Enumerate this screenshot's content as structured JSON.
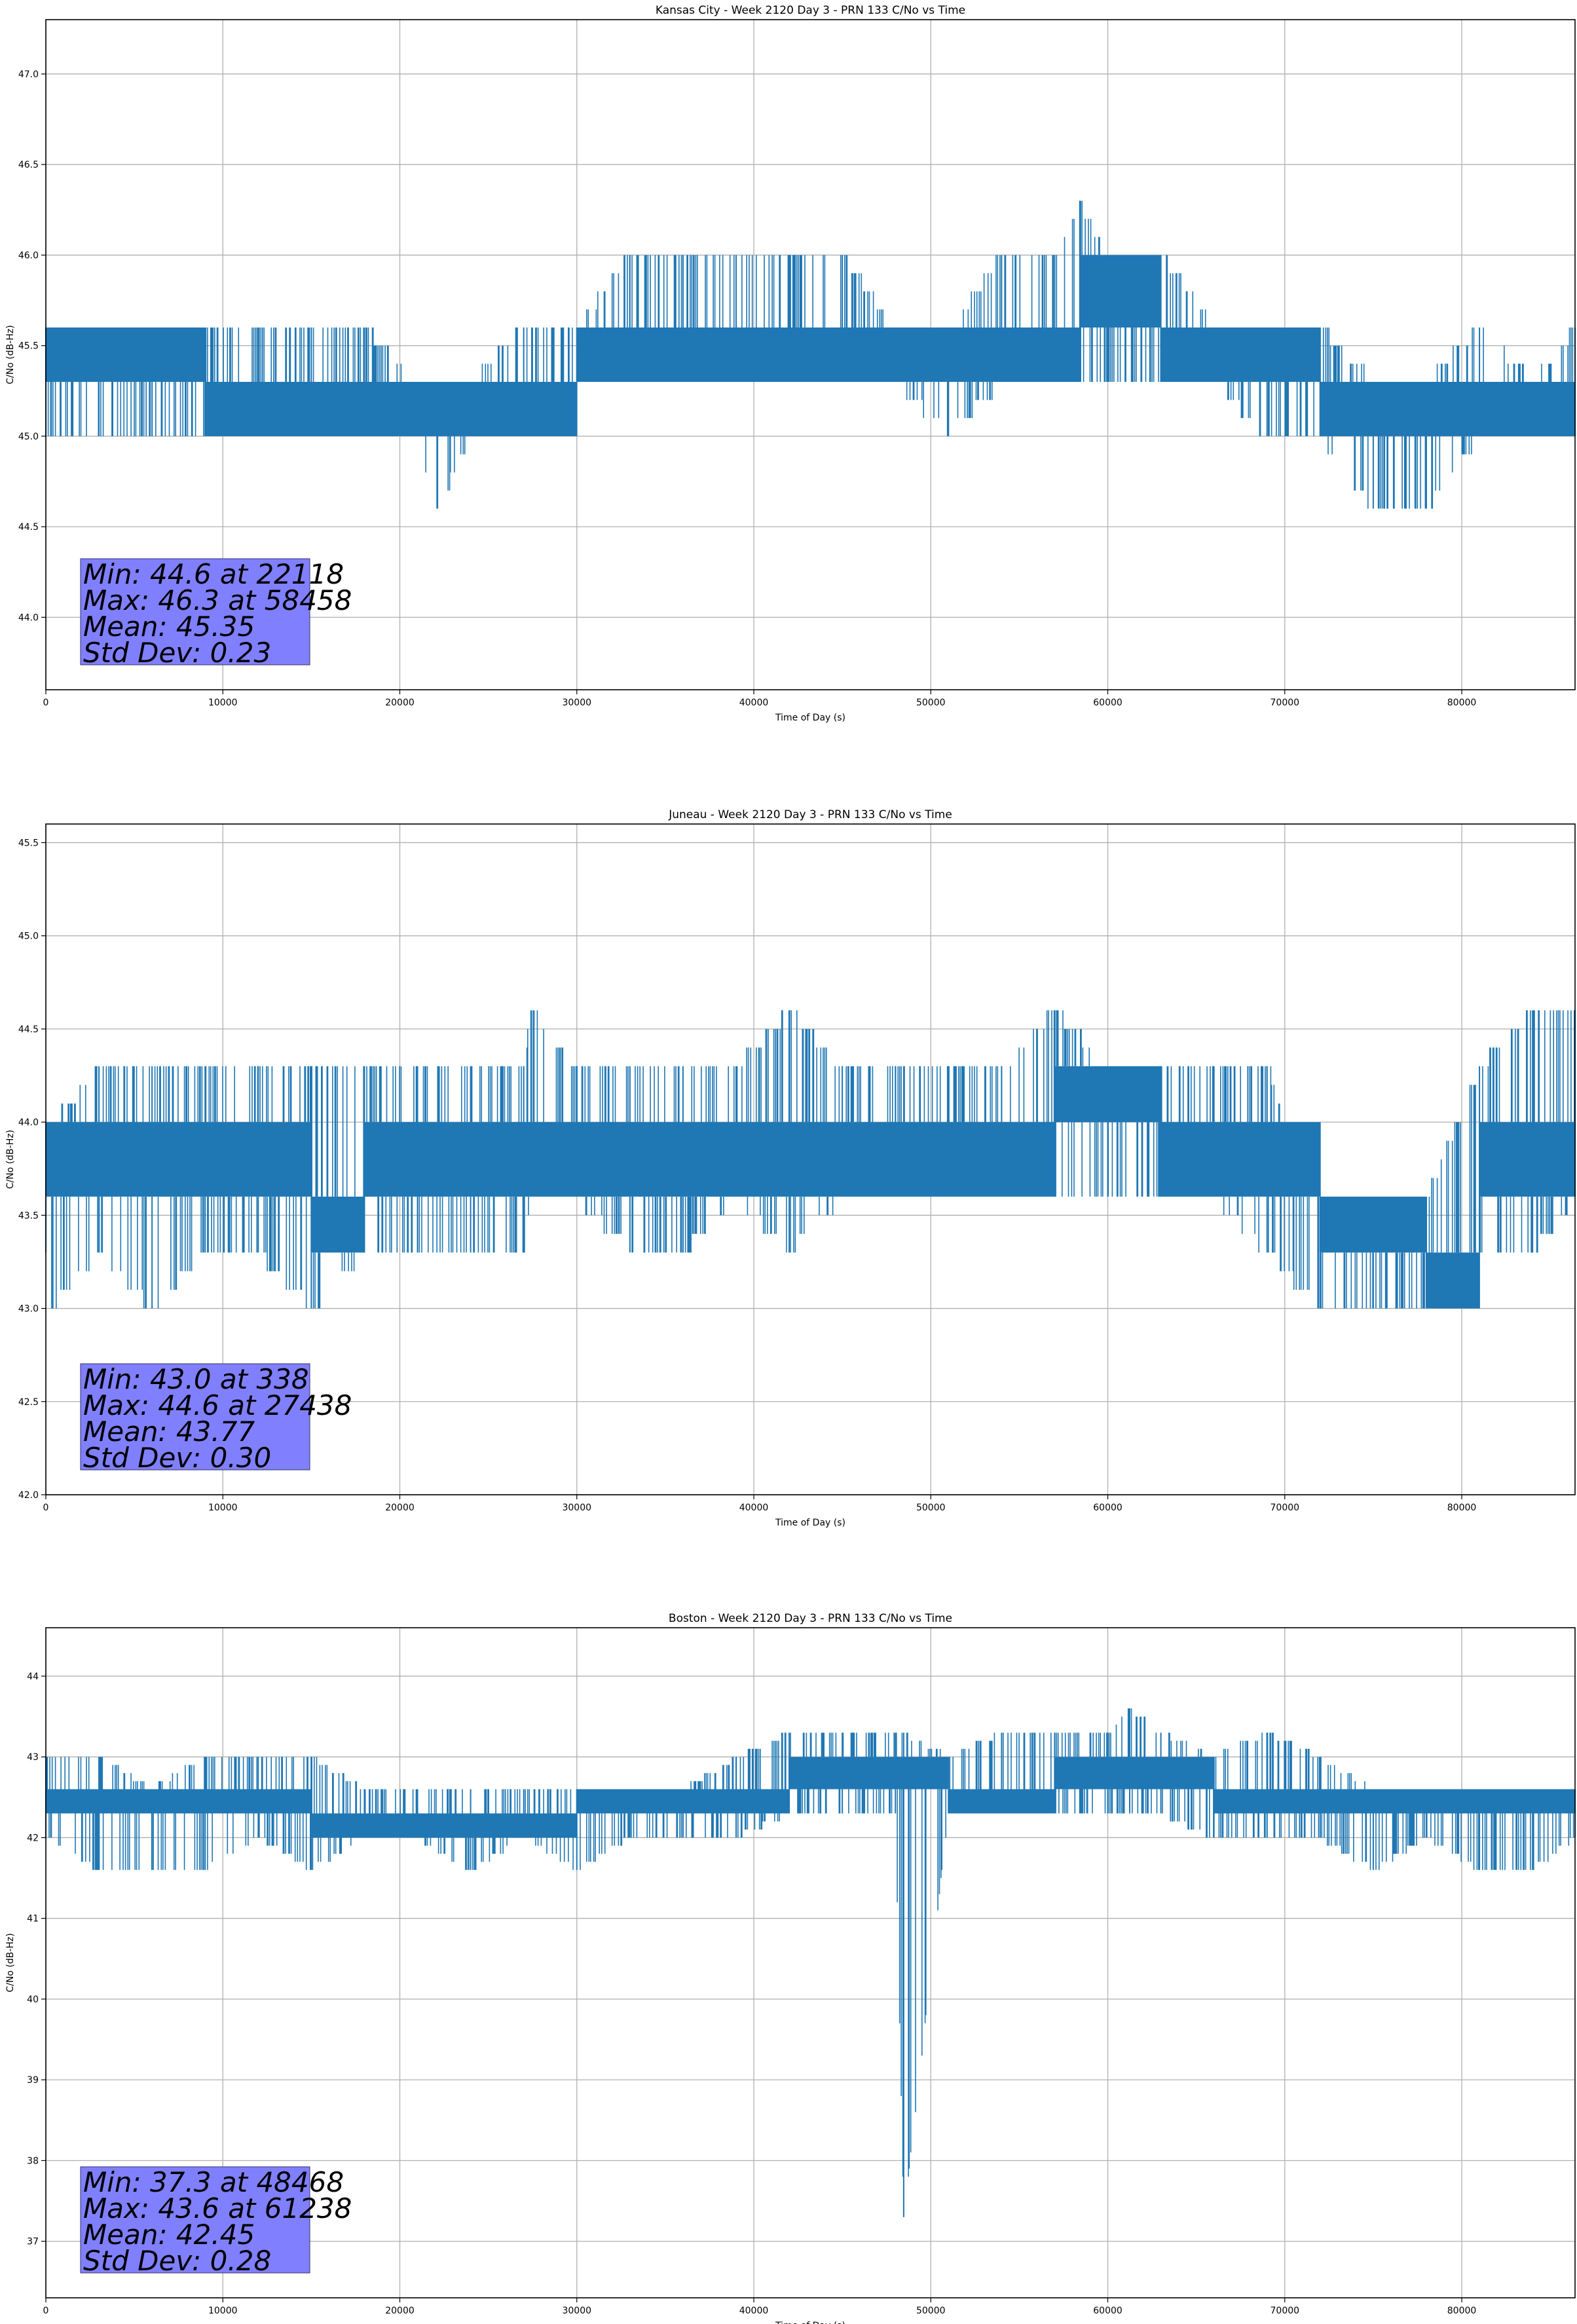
{
  "figure": {
    "line_color": "#1f77b4",
    "grid_color": "#b0b0b0",
    "stats_box_color": "#8080ff"
  },
  "chart_data": [
    {
      "type": "line",
      "title": "Kansas City - Week 2120 Day 3 - PRN 133 C/No vs Time",
      "xlabel": "Time of Day (s)",
      "ylabel": "C/No (dB-Hz)",
      "xlim": [
        0,
        86400
      ],
      "ylim": [
        43.6,
        47.3
      ],
      "grid": true,
      "xticks": [
        0,
        10000,
        20000,
        30000,
        40000,
        50000,
        60000,
        70000,
        80000
      ],
      "xtick_labels": [
        "0",
        "10000",
        "20000",
        "30000",
        "40000",
        "50000",
        "60000",
        "70000",
        "80000"
      ],
      "yticks": [
        44.0,
        44.5,
        45.0,
        45.5,
        46.0,
        46.5,
        47.0
      ],
      "ytick_labels": [
        "44.0",
        "44.5",
        "45.0",
        "45.5",
        "46.0",
        "46.5",
        "47.0"
      ],
      "stats": [
        "Min: 44.6 at 22118",
        "Max: 46.3 at 58458",
        "Mean: 45.35",
        "Std Dev: 0.23"
      ],
      "series": [
        {
          "x": [
            0,
            3000,
            6000,
            9000,
            12000,
            15000,
            18000,
            21000,
            22118,
            24000,
            27000,
            30000,
            33000,
            36000,
            39000,
            42000,
            45000,
            48000,
            51000,
            54000,
            57000,
            58458,
            60000,
            63000,
            66000,
            69000,
            72000,
            75000,
            78000,
            81000,
            84000,
            86400
          ],
          "y_low": [
            45.0,
            45.0,
            45.0,
            45.0,
            45.0,
            45.0,
            45.0,
            45.0,
            44.6,
            45.0,
            45.0,
            45.3,
            45.3,
            45.3,
            45.3,
            45.3,
            45.3,
            45.3,
            45.0,
            45.3,
            45.3,
            45.3,
            45.3,
            45.3,
            45.3,
            45.0,
            45.0,
            44.6,
            44.6,
            45.0,
            45.0,
            45.0
          ],
          "y_high": [
            45.6,
            45.6,
            45.6,
            45.6,
            45.6,
            45.6,
            45.6,
            45.3,
            45.3,
            45.3,
            45.6,
            45.6,
            46.0,
            46.0,
            46.0,
            46.0,
            46.0,
            45.6,
            45.6,
            46.0,
            46.0,
            46.3,
            46.0,
            46.0,
            45.6,
            45.6,
            45.6,
            45.3,
            45.3,
            45.6,
            45.3,
            45.6
          ],
          "band_low": [
            45.3,
            45.3,
            45.3,
            45.0,
            45.0,
            45.0,
            45.0,
            45.0,
            45.0,
            45.0,
            45.0,
            45.3,
            45.3,
            45.3,
            45.3,
            45.3,
            45.3,
            45.3,
            45.3,
            45.3,
            45.3,
            45.6,
            45.6,
            45.3,
            45.3,
            45.3,
            45.0,
            45.0,
            45.0,
            45.0,
            45.0,
            45.0
          ],
          "band_high": [
            45.6,
            45.6,
            45.6,
            45.3,
            45.3,
            45.3,
            45.3,
            45.3,
            45.3,
            45.3,
            45.3,
            45.6,
            45.6,
            45.6,
            45.6,
            45.6,
            45.6,
            45.6,
            45.6,
            45.6,
            45.6,
            46.0,
            46.0,
            45.6,
            45.6,
            45.6,
            45.3,
            45.3,
            45.3,
            45.3,
            45.3,
            45.3
          ]
        }
      ]
    },
    {
      "type": "line",
      "title": "Juneau - Week 2120 Day 3 - PRN 133 C/No vs Time",
      "xlabel": "Time of Day (s)",
      "ylabel": "C/No (dB-Hz)",
      "xlim": [
        0,
        86400
      ],
      "ylim": [
        42.0,
        45.6
      ],
      "grid": true,
      "xticks": [
        0,
        10000,
        20000,
        30000,
        40000,
        50000,
        60000,
        70000,
        80000
      ],
      "xtick_labels": [
        "0",
        "10000",
        "20000",
        "30000",
        "40000",
        "50000",
        "60000",
        "70000",
        "80000"
      ],
      "yticks": [
        42.0,
        42.5,
        43.0,
        43.5,
        44.0,
        44.5,
        45.0,
        45.5
      ],
      "ytick_labels": [
        "42.0",
        "42.5",
        "43.0",
        "43.5",
        "44.0",
        "44.5",
        "45.0",
        "45.5"
      ],
      "stats": [
        "Min: 43.0 at 338",
        "Max: 44.6 at 27438",
        "Mean: 43.77",
        "Std Dev: 0.30"
      ],
      "series": [
        {
          "x": [
            0,
            338,
            3000,
            6000,
            9000,
            12000,
            15000,
            18000,
            21000,
            24000,
            27000,
            27438,
            30000,
            33000,
            36000,
            39000,
            42000,
            45000,
            48000,
            51000,
            54000,
            57000,
            60000,
            63000,
            66000,
            69000,
            72000,
            75000,
            78000,
            81000,
            84000,
            86400
          ],
          "y_low": [
            43.3,
            43.0,
            43.3,
            43.0,
            43.3,
            43.3,
            43.0,
            43.3,
            43.3,
            43.3,
            43.3,
            43.6,
            43.6,
            43.3,
            43.3,
            43.6,
            43.3,
            43.6,
            43.6,
            43.6,
            43.6,
            43.6,
            43.6,
            43.6,
            43.6,
            43.3,
            43.0,
            43.0,
            43.0,
            43.3,
            43.3,
            43.6
          ],
          "y_high": [
            44.0,
            44.0,
            44.3,
            44.3,
            44.3,
            44.3,
            44.3,
            44.3,
            44.3,
            44.3,
            44.3,
            44.6,
            44.3,
            44.3,
            44.3,
            44.3,
            44.6,
            44.3,
            44.3,
            44.3,
            44.3,
            44.6,
            44.3,
            44.3,
            44.3,
            44.3,
            43.6,
            43.6,
            43.6,
            44.3,
            44.6,
            44.6
          ],
          "band_low": [
            43.6,
            43.6,
            43.6,
            43.6,
            43.6,
            43.6,
            43.3,
            43.6,
            43.6,
            43.6,
            43.6,
            43.6,
            43.6,
            43.6,
            43.6,
            43.6,
            43.6,
            43.6,
            43.6,
            43.6,
            43.6,
            44.0,
            44.0,
            43.6,
            43.6,
            43.6,
            43.3,
            43.3,
            43.0,
            43.6,
            43.6,
            43.6
          ],
          "band_high": [
            44.0,
            44.0,
            44.0,
            44.0,
            44.0,
            44.0,
            43.6,
            44.0,
            44.0,
            44.0,
            44.0,
            44.0,
            44.0,
            44.0,
            44.0,
            44.0,
            44.0,
            44.0,
            44.0,
            44.0,
            44.0,
            44.3,
            44.3,
            44.0,
            44.0,
            44.0,
            43.6,
            43.6,
            43.3,
            44.0,
            44.0,
            44.0
          ]
        }
      ]
    },
    {
      "type": "line",
      "title": "Boston - Week 2120 Day 3 - PRN 133 C/No vs Time",
      "xlabel": "Time of Day (s)",
      "ylabel": "C/No (dB-Hz)",
      "xlim": [
        0,
        86400
      ],
      "ylim": [
        36.3,
        44.6
      ],
      "grid": true,
      "xticks": [
        0,
        10000,
        20000,
        30000,
        40000,
        50000,
        60000,
        70000,
        80000
      ],
      "xtick_labels": [
        "0",
        "10000",
        "20000",
        "30000",
        "40000",
        "50000",
        "60000",
        "70000",
        "80000"
      ],
      "yticks": [
        37,
        38,
        39,
        40,
        41,
        42,
        43,
        44
      ],
      "ytick_labels": [
        "37",
        "38",
        "39",
        "40",
        "41",
        "42",
        "43",
        "44"
      ],
      "stats": [
        "Min: 37.3 at 48468",
        "Max: 43.6 at 61238",
        "Mean: 42.45",
        "Std Dev: 0.28"
      ],
      "series": [
        {
          "x": [
            0,
            3000,
            6000,
            9000,
            12000,
            15000,
            18000,
            21000,
            24000,
            27000,
            30000,
            33000,
            36000,
            39000,
            42000,
            45000,
            48000,
            48468,
            51000,
            54000,
            57000,
            60000,
            61238,
            63000,
            66000,
            69000,
            72000,
            75000,
            78000,
            81000,
            84000,
            86400
          ],
          "y_low": [
            42.0,
            41.6,
            41.6,
            41.6,
            42.0,
            41.6,
            42.0,
            42.0,
            41.6,
            42.0,
            41.6,
            42.0,
            42.0,
            42.0,
            42.3,
            42.3,
            42.3,
            37.3,
            42.3,
            42.3,
            42.3,
            42.3,
            42.3,
            42.3,
            42.0,
            42.0,
            42.0,
            41.6,
            42.0,
            41.6,
            41.6,
            42.0
          ],
          "y_high": [
            43.0,
            43.0,
            42.6,
            43.0,
            43.0,
            43.0,
            42.6,
            42.6,
            42.6,
            42.6,
            42.6,
            42.6,
            42.6,
            43.0,
            43.3,
            43.3,
            43.3,
            43.3,
            43.0,
            43.3,
            43.3,
            43.3,
            43.6,
            43.3,
            43.0,
            43.3,
            43.0,
            42.6,
            42.6,
            42.6,
            42.6,
            42.6
          ],
          "band_low": [
            42.3,
            42.3,
            42.3,
            42.3,
            42.3,
            42.0,
            42.0,
            42.0,
            42.0,
            42.0,
            42.3,
            42.3,
            42.3,
            42.3,
            42.6,
            42.6,
            42.6,
            42.6,
            42.3,
            42.3,
            42.6,
            42.6,
            42.6,
            42.6,
            42.3,
            42.3,
            42.3,
            42.3,
            42.3,
            42.3,
            42.3,
            42.3
          ],
          "band_high": [
            42.6,
            42.6,
            42.6,
            42.6,
            42.6,
            42.3,
            42.3,
            42.3,
            42.3,
            42.3,
            42.6,
            42.6,
            42.6,
            42.6,
            43.0,
            43.0,
            43.0,
            43.0,
            42.6,
            42.6,
            43.0,
            43.0,
            43.0,
            43.0,
            42.6,
            42.6,
            42.6,
            42.6,
            42.6,
            42.6,
            42.6,
            42.6
          ]
        }
      ]
    }
  ]
}
